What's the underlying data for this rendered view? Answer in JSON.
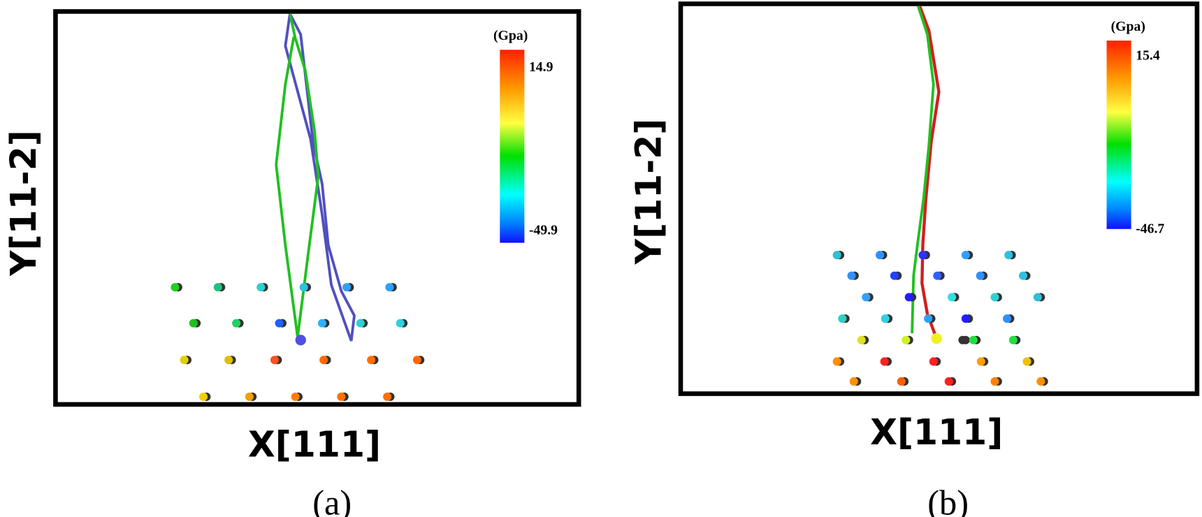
{
  "panels": [
    {
      "label": "(a)",
      "x_axis": "X[111]",
      "y_axis": "Y[11-2]",
      "colorbar": {
        "unit": "(Gpa)",
        "max": 14.9,
        "min": -49.9
      }
    },
    {
      "label": "(b)",
      "x_axis": "X[111]",
      "y_axis": "Y[11-2]",
      "colorbar": {
        "unit": "(Gpa)",
        "max": 15.4,
        "min": -46.7
      }
    }
  ]
}
